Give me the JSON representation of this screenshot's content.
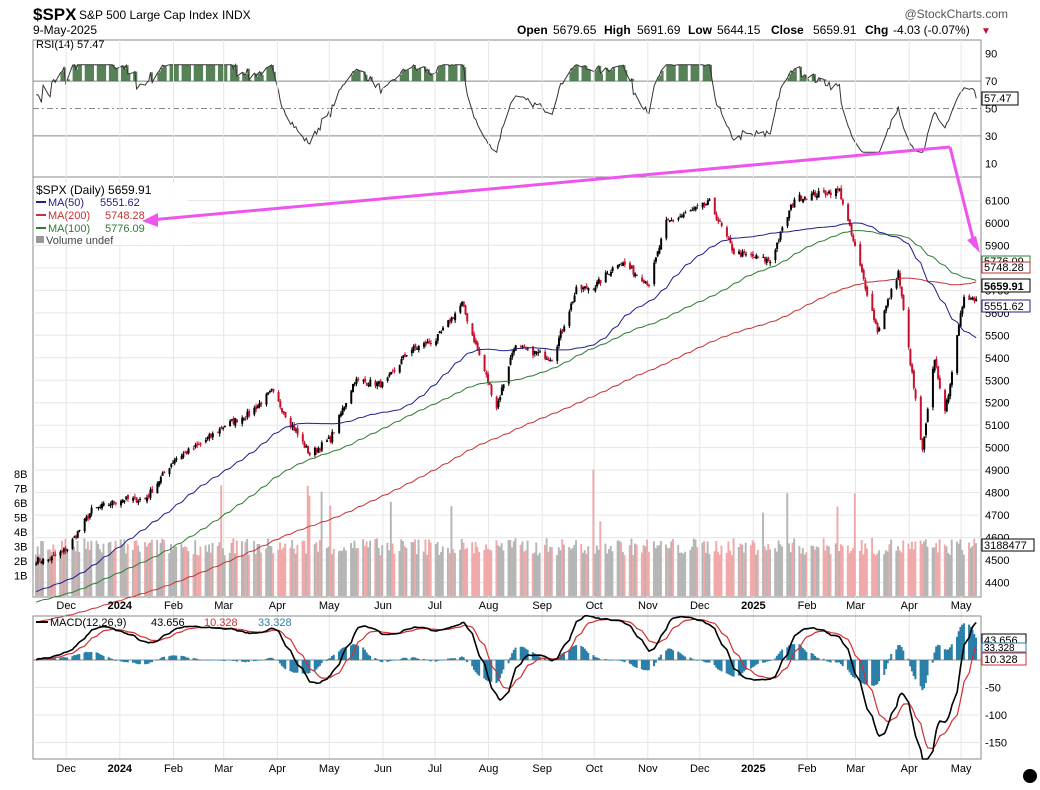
{
  "header": {
    "symbol": "$SPX",
    "name": "S&P 500 Large Cap Index",
    "exchange": "INDX",
    "date": "9-May-2025",
    "brand": "@StockCharts.com",
    "open_label": "Open",
    "open": "5679.65",
    "high_label": "High",
    "high": "5691.69",
    "low_label": "Low",
    "low": "5644.15",
    "close_label": "Close",
    "close": "5659.91",
    "chg_label": "Chg",
    "chg": "-4.03 (-0.07%)"
  },
  "colors": {
    "up_candle": "#000000",
    "down_candle": "#c8102e",
    "ma50": "#1f1f8a",
    "ma200": "#c83232",
    "ma100": "#2e7d32",
    "arrow": "#ee55ee",
    "macd_line": "#000000",
    "signal_line": "#d32f2f",
    "histogram": "#2a7fa8"
  },
  "chart_data": [
    {
      "type": "line",
      "title": "RSI(14) 57.47",
      "series": [
        {
          "name": "RSI(14)",
          "last": 57.47
        }
      ],
      "ylim": [
        0,
        100
      ],
      "reference_lines": [
        70,
        50,
        30
      ],
      "y_ticks": [
        90,
        70,
        50,
        30,
        10
      ],
      "last_value_label": "57.47",
      "y_tick_labels": [
        "90",
        "70",
        "50",
        "30",
        "10"
      ]
    },
    {
      "type": "line",
      "title": "$SPX (Daily) 5659.91",
      "series": [
        {
          "name": "$SPX (Daily)",
          "last": 5659.91,
          "x": [
            "2023-11-20",
            "2023-12-01",
            "2023-12-15",
            "2024-01-01",
            "2024-01-15",
            "2024-02-01",
            "2024-02-15",
            "2024-03-01",
            "2024-03-15",
            "2024-03-28",
            "2024-04-19",
            "2024-05-01",
            "2024-05-15",
            "2024-06-01",
            "2024-06-15",
            "2024-07-01",
            "2024-07-16",
            "2024-08-05",
            "2024-08-15",
            "2024-09-06",
            "2024-09-20",
            "2024-10-01",
            "2024-10-15",
            "2024-11-01",
            "2024-11-11",
            "2024-12-06",
            "2024-12-20",
            "2025-01-10",
            "2025-01-24",
            "2025-02-19",
            "2025-03-13",
            "2025-03-25",
            "2025-04-08",
            "2025-04-15",
            "2025-04-21",
            "2025-05-02",
            "2025-05-09"
          ],
          "y": [
            4500,
            4550,
            4720,
            4770,
            4770,
            4950,
            5010,
            5100,
            5150,
            5250,
            4970,
            5040,
            5300,
            5280,
            5430,
            5480,
            5640,
            5180,
            5450,
            5400,
            5700,
            5720,
            5830,
            5730,
            6000,
            6090,
            5870,
            5830,
            6110,
            6145,
            5520,
            5780,
            4980,
            5400,
            5150,
            5680,
            5660
          ]
        },
        {
          "name": "MA(50)",
          "last": 5551.62
        },
        {
          "name": "MA(200)",
          "last": 5748.28
        },
        {
          "name": "MA(100)",
          "last": 5776.09
        }
      ],
      "volume_label": "Volume undef",
      "volume_last": "3188477",
      "ylim": [
        4340,
        6200
      ],
      "y_ticks": [
        6100,
        6000,
        5900,
        5800,
        5700,
        5600,
        5500,
        5400,
        5300,
        5200,
        5100,
        5000,
        4900,
        4800,
        4700,
        4600,
        4500,
        4400
      ],
      "volume_ticks": [
        "8B",
        "7B",
        "6B",
        "5B",
        "4B",
        "3B",
        "2B",
        "1B"
      ],
      "volume_ylim": [
        0,
        8
      ],
      "price_labels": [
        "5776.09",
        "5748.28",
        "5659.91",
        "5551.62"
      ],
      "x_tick_labels": [
        "Dec",
        "2024",
        "Feb",
        "Mar",
        "Apr",
        "May",
        "Jun",
        "Jul",
        "Aug",
        "Sep",
        "Oct",
        "Nov",
        "Dec",
        "2025",
        "Feb",
        "Mar",
        "Apr",
        "May"
      ],
      "y_tick_labels": [
        "6100",
        "6000",
        "5900",
        "5800",
        "5700",
        "5600",
        "5500",
        "5400",
        "5300",
        "5200",
        "5100",
        "5000",
        "4900",
        "4800",
        "4700",
        "4600",
        "4500",
        "4400"
      ]
    },
    {
      "type": "line",
      "title": "MACD(12,26,9) 43.656, 10.328, 33.328",
      "series": [
        {
          "name": "MACD(12,26,9)",
          "last": 43.656
        },
        {
          "name": "Signal",
          "last": 10.328
        },
        {
          "name": "Histogram",
          "last": 33.328
        }
      ],
      "ylim": [
        -180,
        80
      ],
      "y_ticks": [
        -50,
        -100,
        -150
      ],
      "last_value_labels": [
        "43.656",
        "33.328",
        "10.328"
      ],
      "x_tick_labels": [
        "Dec",
        "2024",
        "Feb",
        "Mar",
        "Apr",
        "May",
        "Jun",
        "Jul",
        "Aug",
        "Sep",
        "Oct",
        "Nov",
        "Dec",
        "2025",
        "Feb",
        "Mar",
        "Apr",
        "May"
      ],
      "y_tick_labels": [
        "-50",
        "-100",
        "-150"
      ]
    }
  ]
}
